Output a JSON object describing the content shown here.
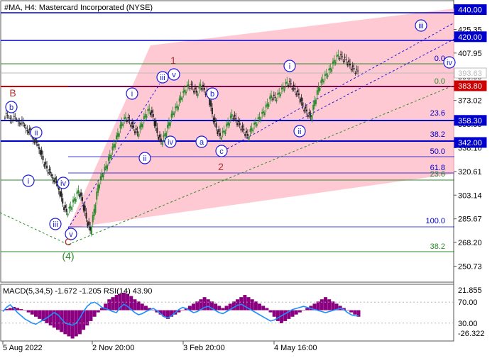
{
  "header": {
    "title": "#MA, H4:  Mastercard Incorporated (NYSE)"
  },
  "indicator": {
    "label": "MACD(5,34,5) -1.672 -1.205 RSI(14) 43.90"
  },
  "colors": {
    "up_candle": "#2e8b2e",
    "down_candle": "#222222",
    "level_line": "#0000cc",
    "last_price_line": "#cc0000",
    "fib_line": "#2a8a2a",
    "channel_fill": "#ffc0cb",
    "wave_label": "#1a1ad6",
    "higher_wave_label": "#b03030",
    "macd_hist": "#8b0080",
    "rsi_line": "#1e90ff"
  },
  "chart_data": [
    {
      "type": "candlestick",
      "ylim": [
        240,
        445
      ],
      "y_tick_labels": [
        "425.35",
        "407.95",
        "390.55",
        "373.02",
        "355.55",
        "338.10",
        "320.61",
        "303.14",
        "285.67",
        "268.20",
        "250.73"
      ],
      "x_tick_labels": [
        "5 Aug 2022",
        "2 Nov 20:00",
        "3 Feb 20:00",
        "4 May 16:00"
      ],
      "price_tags": [
        {
          "label": "440.00",
          "value": 440.0,
          "kind": "level"
        },
        {
          "label": "420.00",
          "value": 420.0,
          "kind": "level"
        },
        {
          "label": "393.63",
          "value": 393.63,
          "kind": "current"
        },
        {
          "label": "383.80",
          "value": 383.8,
          "kind": "stop"
        },
        {
          "label": "358.30",
          "value": 358.3,
          "kind": "level"
        },
        {
          "label": "342.00",
          "value": 342.0,
          "kind": "level"
        }
      ],
      "fibonacci_labels": [
        "0.0",
        "23.6",
        "38.2",
        "50.0",
        "61.8",
        "100.0",
        "0.0",
        "23.6",
        "38.2"
      ],
      "wave_labels": [
        "i",
        "ii",
        "iii",
        "iv",
        "v",
        "i",
        "ii",
        "iii",
        "iv",
        "v",
        "a",
        "b",
        "c",
        "b",
        "i",
        "ii",
        "iii",
        "iv"
      ],
      "higher_wave_labels": [
        "B",
        "C",
        "(4)",
        "1",
        "2"
      ],
      "close_path": [
        [
          0,
          362
        ],
        [
          4,
          360
        ],
        [
          8,
          358
        ],
        [
          12,
          352
        ],
        [
          15,
          345
        ],
        [
          18,
          338
        ],
        [
          20,
          328
        ],
        [
          22,
          322
        ],
        [
          25,
          316
        ],
        [
          28,
          308
        ],
        [
          30,
          296
        ],
        [
          32,
          290
        ],
        [
          34,
          294
        ],
        [
          36,
          300
        ],
        [
          38,
          306
        ],
        [
          40,
          298
        ],
        [
          42,
          285
        ],
        [
          44,
          276
        ],
        [
          46,
          292
        ],
        [
          48,
          310
        ],
        [
          50,
          318
        ],
        [
          52,
          324
        ],
        [
          54,
          332
        ],
        [
          56,
          340
        ],
        [
          58,
          348
        ],
        [
          60,
          356
        ],
        [
          62,
          360
        ],
        [
          64,
          357
        ],
        [
          66,
          352
        ],
        [
          68,
          348
        ],
        [
          70,
          355
        ],
        [
          72,
          362
        ],
        [
          74,
          366
        ],
        [
          76,
          360
        ],
        [
          78,
          348
        ],
        [
          80,
          342
        ],
        [
          82,
          348
        ],
        [
          84,
          356
        ],
        [
          86,
          364
        ],
        [
          88,
          368
        ],
        [
          90,
          375
        ],
        [
          92,
          380
        ],
        [
          94,
          384
        ],
        [
          96,
          382
        ],
        [
          98,
          378
        ],
        [
          100,
          384
        ],
        [
          102,
          380
        ],
        [
          104,
          376
        ],
        [
          106,
          362
        ],
        [
          108,
          352
        ],
        [
          110,
          346
        ],
        [
          112,
          350
        ],
        [
          114,
          356
        ],
        [
          116,
          362
        ],
        [
          118,
          358
        ],
        [
          120,
          354
        ],
        [
          122,
          350
        ],
        [
          124,
          346
        ],
        [
          126,
          352
        ],
        [
          128,
          356
        ],
        [
          130,
          360
        ],
        [
          132,
          364
        ],
        [
          134,
          370
        ],
        [
          136,
          376
        ],
        [
          138,
          374
        ],
        [
          140,
          378
        ],
        [
          142,
          382
        ],
        [
          144,
          386
        ],
        [
          146,
          384
        ],
        [
          148,
          380
        ],
        [
          150,
          376
        ],
        [
          152,
          368
        ],
        [
          154,
          364
        ],
        [
          156,
          360
        ],
        [
          158,
          372
        ],
        [
          160,
          382
        ],
        [
          162,
          388
        ],
        [
          164,
          392
        ],
        [
          166,
          396
        ],
        [
          168,
          402
        ],
        [
          170,
          406
        ],
        [
          172,
          404
        ],
        [
          174,
          402
        ],
        [
          176,
          398
        ],
        [
          178,
          395
        ],
        [
          180,
          393.63
        ]
      ]
    },
    {
      "type": "area",
      "ylim": [
        -26.322,
        21.855
      ],
      "y_tick_labels": [
        "21.855",
        "-26.322"
      ],
      "rsi_levels": [
        "70.00",
        "30.00"
      ],
      "macd_hist": [
        0,
        1,
        2,
        3,
        2,
        1,
        0,
        -2,
        -4,
        -6,
        -8,
        -10,
        -12,
        -14,
        -16,
        -18,
        -20,
        -22,
        -24,
        -26,
        -24,
        -22,
        -18,
        -14,
        -10,
        -6,
        -2,
        2,
        6,
        10,
        12,
        14,
        15,
        16,
        15,
        13,
        10,
        8,
        6,
        4,
        2,
        0,
        -2,
        -4,
        -6,
        -8,
        -6,
        -4,
        -2,
        0,
        2,
        4,
        6,
        8,
        10,
        12,
        10,
        8,
        6,
        4,
        2,
        4,
        6,
        8,
        10,
        12,
        14,
        12,
        10,
        8,
        6,
        4,
        2,
        -2,
        -6,
        -10,
        -12,
        -10,
        -8,
        -6,
        -4,
        -2,
        0,
        2,
        4,
        6,
        8,
        10,
        12,
        10,
        8,
        6,
        4,
        2,
        0,
        -2,
        -4,
        -6
      ],
      "rsi": [
        52,
        60,
        65,
        58,
        50,
        44,
        38,
        34,
        30,
        28,
        32,
        36,
        40,
        45,
        50,
        46,
        38,
        30,
        28,
        26,
        30,
        40,
        52,
        62,
        68,
        70,
        66,
        60,
        58,
        55,
        52,
        50,
        60,
        66,
        62,
        56,
        50,
        46,
        48,
        52,
        55,
        58,
        54,
        48,
        42,
        40,
        44,
        50,
        56,
        60,
        58,
        54,
        50,
        52,
        56,
        60,
        62,
        58,
        54,
        50,
        48,
        52,
        56,
        60,
        64,
        66,
        62,
        58,
        54,
        50,
        46,
        42,
        38,
        34,
        36,
        40,
        44,
        48,
        52,
        56,
        58,
        60,
        62,
        60,
        58,
        56,
        54,
        52,
        50,
        52,
        54,
        56,
        58,
        56,
        50,
        46,
        44,
        43.9
      ]
    }
  ]
}
